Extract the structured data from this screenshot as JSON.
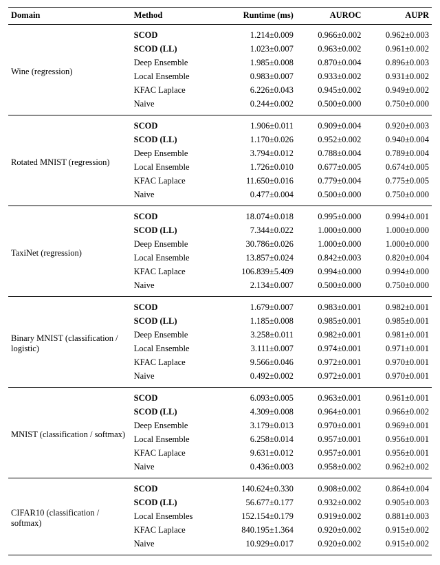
{
  "header": {
    "domain": "Domain",
    "method": "Method",
    "runtime": "Runtime (ms)",
    "auroc": "AUROC",
    "aupr": "AUPR"
  },
  "groups": [
    {
      "domain": "Wine (regression)",
      "rows": [
        {
          "method": "SCOD",
          "bold": true,
          "runtime": "1.214±0.009",
          "auroc": "0.966±0.002",
          "aupr": "0.962±0.003"
        },
        {
          "method": "SCOD (LL)",
          "bold": true,
          "runtime": "1.023±0.007",
          "auroc": "0.963±0.002",
          "aupr": "0.961±0.002"
        },
        {
          "method": "Deep Ensemble",
          "bold": false,
          "runtime": "1.985±0.008",
          "auroc": "0.870±0.004",
          "aupr": "0.896±0.003"
        },
        {
          "method": "Local Ensemble",
          "bold": false,
          "runtime": "0.983±0.007",
          "auroc": "0.933±0.002",
          "aupr": "0.931±0.002"
        },
        {
          "method": "KFAC Laplace",
          "bold": false,
          "runtime": "6.226±0.043",
          "auroc": "0.945±0.002",
          "aupr": "0.949±0.002"
        },
        {
          "method": "Naive",
          "bold": false,
          "runtime": "0.244±0.002",
          "auroc": "0.500±0.000",
          "aupr": "0.750±0.000"
        }
      ]
    },
    {
      "domain": "Rotated MNIST (regression)",
      "rows": [
        {
          "method": "SCOD",
          "bold": true,
          "runtime": "1.906±0.011",
          "auroc": "0.909±0.004",
          "aupr": "0.920±0.003"
        },
        {
          "method": "SCOD (LL)",
          "bold": true,
          "runtime": "1.170±0.026",
          "auroc": "0.952±0.002",
          "aupr": "0.940±0.004"
        },
        {
          "method": "Deep Ensemble",
          "bold": false,
          "runtime": "3.794±0.012",
          "auroc": "0.788±0.004",
          "aupr": "0.789±0.004"
        },
        {
          "method": "Local Ensemble",
          "bold": false,
          "runtime": "1.726±0.010",
          "auroc": "0.677±0.005",
          "aupr": "0.674±0.005"
        },
        {
          "method": "KFAC Laplace",
          "bold": false,
          "runtime": "11.650±0.016",
          "auroc": "0.779±0.004",
          "aupr": "0.775±0.005"
        },
        {
          "method": "Naive",
          "bold": false,
          "runtime": "0.477±0.004",
          "auroc": "0.500±0.000",
          "aupr": "0.750±0.000"
        }
      ]
    },
    {
      "domain": "TaxiNet (regression)",
      "rows": [
        {
          "method": "SCOD",
          "bold": true,
          "runtime": "18.074±0.018",
          "auroc": "0.995±0.000",
          "aupr": "0.994±0.001"
        },
        {
          "method": "SCOD (LL)",
          "bold": true,
          "runtime": "7.344±0.022",
          "auroc": "1.000±0.000",
          "aupr": "1.000±0.000"
        },
        {
          "method": "Deep Ensemble",
          "bold": false,
          "runtime": "30.786±0.026",
          "auroc": "1.000±0.000",
          "aupr": "1.000±0.000"
        },
        {
          "method": "Local Ensemble",
          "bold": false,
          "runtime": "13.857±0.024",
          "auroc": "0.842±0.003",
          "aupr": "0.820±0.004"
        },
        {
          "method": "KFAC Laplace",
          "bold": false,
          "runtime": "106.839±5.409",
          "auroc": "0.994±0.000",
          "aupr": "0.994±0.000"
        },
        {
          "method": "Naive",
          "bold": false,
          "runtime": "2.134±0.007",
          "auroc": "0.500±0.000",
          "aupr": "0.750±0.000"
        }
      ]
    },
    {
      "domain": "Binary MNIST (classification / logistic)",
      "rows": [
        {
          "method": "SCOD",
          "bold": true,
          "runtime": "1.679±0.007",
          "auroc": "0.983±0.001",
          "aupr": "0.982±0.001"
        },
        {
          "method": "SCOD (LL)",
          "bold": true,
          "runtime": "1.185±0.008",
          "auroc": "0.985±0.001",
          "aupr": "0.985±0.001"
        },
        {
          "method": "Deep Ensemble",
          "bold": false,
          "runtime": "3.258±0.011",
          "auroc": "0.982±0.001",
          "aupr": "0.981±0.001"
        },
        {
          "method": "Local Ensemble",
          "bold": false,
          "runtime": "3.111±0.007",
          "auroc": "0.974±0.001",
          "aupr": "0.971±0.001"
        },
        {
          "method": "KFAC Laplace",
          "bold": false,
          "runtime": "9.566±0.046",
          "auroc": "0.972±0.001",
          "aupr": "0.970±0.001"
        },
        {
          "method": "Naive",
          "bold": false,
          "runtime": "0.492±0.002",
          "auroc": "0.972±0.001",
          "aupr": "0.970±0.001"
        }
      ]
    },
    {
      "domain": "MNIST (classification / softmax)",
      "rows": [
        {
          "method": "SCOD",
          "bold": true,
          "runtime": "6.093±0.005",
          "auroc": "0.963±0.001",
          "aupr": "0.961±0.001"
        },
        {
          "method": "SCOD (LL)",
          "bold": true,
          "runtime": "4.309±0.008",
          "auroc": "0.964±0.001",
          "aupr": "0.966±0.002"
        },
        {
          "method": "Deep Ensemble",
          "bold": false,
          "runtime": "3.179±0.013",
          "auroc": "0.970±0.001",
          "aupr": "0.969±0.001"
        },
        {
          "method": "Local Ensemble",
          "bold": false,
          "runtime": "6.258±0.014",
          "auroc": "0.957±0.001",
          "aupr": "0.956±0.001"
        },
        {
          "method": "KFAC Laplace",
          "bold": false,
          "runtime": "9.631±0.012",
          "auroc": "0.957±0.001",
          "aupr": "0.956±0.001"
        },
        {
          "method": "Naive",
          "bold": false,
          "runtime": "0.436±0.003",
          "auroc": "0.958±0.002",
          "aupr": "0.962±0.002"
        }
      ]
    },
    {
      "domain": "CIFAR10 (classification / softmax)",
      "rows": [
        {
          "method": "SCOD",
          "bold": true,
          "runtime": "140.624±0.330",
          "auroc": "0.908±0.002",
          "aupr": "0.864±0.004"
        },
        {
          "method": "SCOD (LL)",
          "bold": true,
          "runtime": "56.677±0.177",
          "auroc": "0.932±0.002",
          "aupr": "0.905±0.003"
        },
        {
          "method": "Local Ensembles",
          "bold": false,
          "runtime": "152.154±0.179",
          "auroc": "0.919±0.002",
          "aupr": "0.881±0.003"
        },
        {
          "method": "KFAC Laplace",
          "bold": false,
          "runtime": "840.195±1.364",
          "auroc": "0.920±0.002",
          "aupr": "0.915±0.002"
        },
        {
          "method": "Naive",
          "bold": false,
          "runtime": "10.929±0.017",
          "auroc": "0.920±0.002",
          "aupr": "0.915±0.002"
        }
      ]
    }
  ]
}
